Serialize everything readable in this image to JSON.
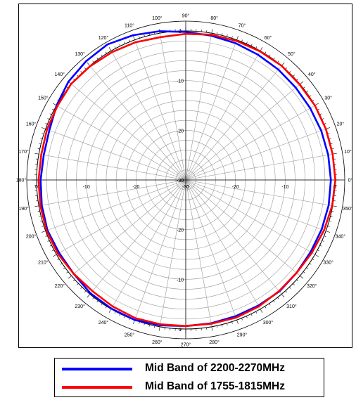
{
  "chart_data": {
    "type": "polar-line",
    "angle_unit": "degrees",
    "angle_ticks": [
      0,
      10,
      20,
      30,
      40,
      50,
      60,
      70,
      80,
      90,
      100,
      110,
      120,
      130,
      140,
      150,
      160,
      170,
      180,
      190,
      200,
      210,
      220,
      230,
      240,
      250,
      260,
      270,
      280,
      290,
      300,
      310,
      320,
      330,
      340,
      350
    ],
    "angle_tick_labels": [
      "0°",
      "10°",
      "20°",
      "30°",
      "40°",
      "50°",
      "60°",
      "70°",
      "80°",
      "90°",
      "100°",
      "110°",
      "120°",
      "130°",
      "140°",
      "150°",
      "160°",
      "170°",
      "180°",
      "190°",
      "200°",
      "210°",
      "220°",
      "230°",
      "240°",
      "250°",
      "260°",
      "270°",
      "280°",
      "290°",
      "300°",
      "310°",
      "320°",
      "330°",
      "340°",
      "350°"
    ],
    "radial_range": [
      -30,
      0
    ],
    "radial_ticks": [
      -30,
      -20,
      -10,
      0
    ],
    "radial_tick_labels": [
      "-30",
      "-20",
      "-10",
      "0"
    ],
    "grid": true,
    "legend_position": "bottom",
    "series": [
      {
        "name": "Mid Band of 2200-2270MHz",
        "color": "#0000ff",
        "angles": [
          0,
          10,
          20,
          30,
          40,
          50,
          60,
          70,
          80,
          90,
          100,
          110,
          120,
          130,
          140,
          150,
          160,
          170,
          180,
          190,
          200,
          210,
          220,
          230,
          240,
          250,
          260,
          270,
          280,
          290,
          300,
          310,
          320,
          330,
          340,
          350
        ],
        "values": [
          -0.8,
          -0.9,
          -1.0,
          -1.1,
          -1.1,
          -1.0,
          -0.9,
          -0.7,
          -0.5,
          -0.2,
          0.4,
          1.0,
          1.5,
          1.2,
          0.8,
          0.0,
          -0.8,
          -1.0,
          -0.8,
          -0.6,
          -0.4,
          -0.6,
          -0.6,
          -0.2,
          -0.1,
          0.0,
          -0.3,
          -0.6,
          -0.7,
          -0.8,
          -0.8,
          -0.7,
          -0.9,
          -1.0,
          -0.9,
          -0.8
        ]
      },
      {
        "name": "Mid Band of 1755-1815MHz",
        "color": "#ff0000",
        "angles": [
          0,
          10,
          20,
          30,
          40,
          50,
          60,
          70,
          80,
          90,
          100,
          110,
          120,
          130,
          140,
          150,
          160,
          170,
          180,
          190,
          200,
          210,
          220,
          230,
          240,
          250,
          260,
          270,
          280,
          290,
          300,
          310,
          320,
          330,
          340,
          350
        ],
        "values": [
          0.1,
          0.0,
          0.0,
          0.0,
          -0.1,
          0.0,
          -0.1,
          -0.2,
          -0.3,
          -0.6,
          -0.8,
          -0.5,
          -0.3,
          -0.1,
          0.1,
          -0.2,
          -0.3,
          -0.5,
          -0.4,
          -0.3,
          -0.2,
          -0.3,
          -0.6,
          -0.8,
          -0.6,
          -0.4,
          -0.5,
          -0.6,
          -0.6,
          -0.5,
          -0.6,
          -0.8,
          -0.9,
          -0.7,
          -0.4,
          -0.1
        ]
      }
    ]
  },
  "legend": {
    "items": [
      {
        "label": "Mid Band of 2200-2270MHz",
        "color": "#0000ff"
      },
      {
        "label": "Mid Band of 1755-1815MHz",
        "color": "#ff0000"
      }
    ]
  }
}
